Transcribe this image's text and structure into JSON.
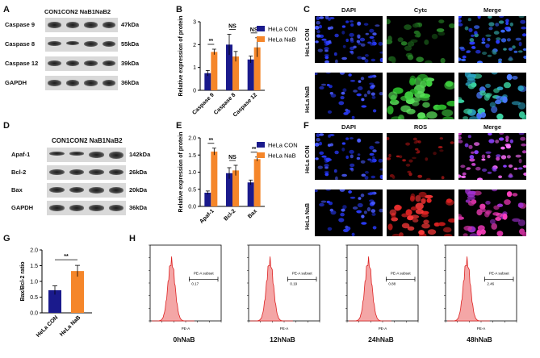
{
  "panels": {
    "A": {
      "letter": "A",
      "lanes": "CON1CON2 NaB1NaB2",
      "rows": [
        {
          "name": "Caspase 9",
          "size": "47kDa"
        },
        {
          "name": "Caspase 8",
          "size": "55kDa"
        },
        {
          "name": "Caspase 12",
          "size": "39kDa"
        },
        {
          "name": "GAPDH",
          "size": "36kDa"
        }
      ]
    },
    "B": {
      "letter": "B"
    },
    "C": {
      "letter": "C",
      "cols": [
        "DAPI",
        "Cytc",
        "Merge"
      ],
      "rows": [
        "HeLa CON",
        "HeLa NaB"
      ]
    },
    "D": {
      "letter": "D",
      "lanes": "CON1CON2 NaB1NaB2",
      "rows": [
        {
          "name": "Apaf-1",
          "size": "142kDa"
        },
        {
          "name": "Bcl-2",
          "size": "26kDa"
        },
        {
          "name": "Bax",
          "size": "20kDa"
        },
        {
          "name": "GAPDH",
          "size": "36kDa"
        }
      ]
    },
    "E": {
      "letter": "E"
    },
    "F": {
      "letter": "F",
      "cols": [
        "DAPI",
        "ROS",
        "Merge"
      ],
      "rows": [
        "HeLa CON",
        "HeLa NaB"
      ]
    },
    "G": {
      "letter": "G"
    },
    "H": {
      "letter": "H",
      "plots": [
        {
          "label": "0hNaB",
          "gate": "PE-A subset",
          "value": "0.17"
        },
        {
          "label": "12hNaB",
          "gate": "PE-A subset",
          "value": "0.19"
        },
        {
          "label": "24hNaB",
          "gate": "PE-A subset",
          "value": "0.88"
        },
        {
          "label": "48hNaB",
          "gate": "PE-A subset",
          "value": "2.46"
        }
      ]
    }
  },
  "chart_data": [
    {
      "id": "B",
      "type": "bar",
      "categories": [
        "Caspase 9",
        "Caspase 8",
        "Caspase 12"
      ],
      "series": [
        {
          "name": "HeLa CON",
          "color": "#1a1a8c",
          "values": [
            0.75,
            2.0,
            1.35
          ],
          "errors": [
            0.12,
            0.45,
            0.15
          ]
        },
        {
          "name": "HeLa NaB",
          "color": "#f5862a",
          "values": [
            1.68,
            1.48,
            1.88
          ],
          "errors": [
            0.12,
            0.22,
            0.42
          ]
        }
      ],
      "ylabel": "Relative expression of protein",
      "ylim": [
        0,
        3
      ],
      "yticks": [
        "0",
        "1",
        "2",
        "3"
      ],
      "significance": [
        "**",
        "NS",
        "NS"
      ]
    },
    {
      "id": "E",
      "type": "bar",
      "categories": [
        "Apaf-1",
        "Bcl-2",
        "Bax"
      ],
      "series": [
        {
          "name": "HeLa CON",
          "color": "#1a1a8c",
          "values": [
            0.4,
            0.97,
            0.7
          ],
          "errors": [
            0.05,
            0.16,
            0.07
          ]
        },
        {
          "name": "HeLa NaB",
          "color": "#f5862a",
          "values": [
            1.6,
            1.05,
            1.38
          ],
          "errors": [
            0.1,
            0.15,
            0.06
          ]
        }
      ],
      "ylabel": "Relative expression of protein",
      "ylim": [
        0,
        2.0
      ],
      "yticks": [
        "0.0",
        "0.5",
        "1.0",
        "1.5",
        "2.0"
      ],
      "significance": [
        "**",
        "NS",
        "**"
      ]
    },
    {
      "id": "G",
      "type": "bar",
      "categories": [
        "HeLa CON",
        "HeLa NaB"
      ],
      "series": [
        {
          "name": "Bax/Bcl-2 ratio",
          "colors": [
            "#1a1a8c",
            "#f5862a"
          ],
          "values": [
            0.72,
            1.33
          ],
          "errors": [
            0.14,
            0.18
          ]
        }
      ],
      "ylabel": "Bax/Bcl-2 ratio",
      "ylim": [
        0,
        2.0
      ],
      "yticks": [
        "0.0",
        "0.5",
        "1.0",
        "1.5",
        "2.0"
      ],
      "significance": [
        "**"
      ]
    }
  ]
}
